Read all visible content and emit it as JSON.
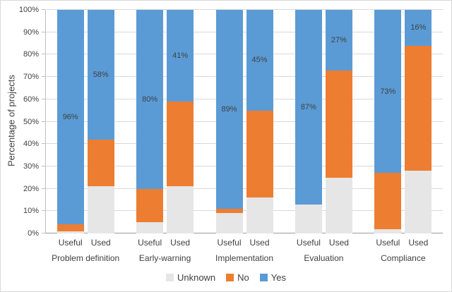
{
  "chart_data": {
    "type": "bar",
    "stacked": true,
    "title": "",
    "xlabel": "",
    "ylabel": "Percentage of projects",
    "ylim": [
      0,
      100
    ],
    "grid": true,
    "legend_position": "bottom",
    "yticks": [
      {
        "value": 0,
        "label": "0%"
      },
      {
        "value": 10,
        "label": "10%"
      },
      {
        "value": 20,
        "label": "20%"
      },
      {
        "value": 30,
        "label": "30%"
      },
      {
        "value": 40,
        "label": "40%"
      },
      {
        "value": 50,
        "label": "50%"
      },
      {
        "value": 60,
        "label": "60%"
      },
      {
        "value": 70,
        "label": "70%"
      },
      {
        "value": 80,
        "label": "80%"
      },
      {
        "value": 90,
        "label": "90%"
      },
      {
        "value": 100,
        "label": "100%"
      }
    ],
    "legend": [
      {
        "key": "unknown",
        "label": "Unknown",
        "color": "#e6e6e6"
      },
      {
        "key": "no",
        "label": "No",
        "color": "#ed7d31"
      },
      {
        "key": "yes",
        "label": "Yes",
        "color": "#5b9bd5"
      }
    ],
    "label_series": "yes",
    "groups": [
      {
        "category": "Problem definition",
        "bars": [
          {
            "label": "Useful",
            "values": {
              "unknown": 1,
              "no": 3,
              "yes": 96
            },
            "data_label": "96%"
          },
          {
            "label": "Used",
            "values": {
              "unknown": 21,
              "no": 21,
              "yes": 58
            },
            "data_label": "58%"
          }
        ]
      },
      {
        "category": "Early-warning",
        "bars": [
          {
            "label": "Useful",
            "values": {
              "unknown": 5,
              "no": 15,
              "yes": 80
            },
            "data_label": "80%"
          },
          {
            "label": "Used",
            "values": {
              "unknown": 21,
              "no": 38,
              "yes": 41
            },
            "data_label": "41%"
          }
        ]
      },
      {
        "category": "Implementation",
        "bars": [
          {
            "label": "Useful",
            "values": {
              "unknown": 9,
              "no": 2,
              "yes": 89
            },
            "data_label": "89%"
          },
          {
            "label": "Used",
            "values": {
              "unknown": 16,
              "no": 39,
              "yes": 45
            },
            "data_label": "45%"
          }
        ]
      },
      {
        "category": "Evaluation",
        "bars": [
          {
            "label": "Useful",
            "values": {
              "unknown": 13,
              "no": 0,
              "yes": 87
            },
            "data_label": "87%"
          },
          {
            "label": "Used",
            "values": {
              "unknown": 25,
              "no": 48,
              "yes": 27
            },
            "data_label": "27%"
          }
        ]
      },
      {
        "category": "Compliance",
        "bars": [
          {
            "label": "Useful",
            "values": {
              "unknown": 2,
              "no": 25,
              "yes": 73
            },
            "data_label": "73%"
          },
          {
            "label": "Used",
            "values": {
              "unknown": 28,
              "no": 56,
              "yes": 16
            },
            "data_label": "16%"
          }
        ]
      }
    ]
  }
}
